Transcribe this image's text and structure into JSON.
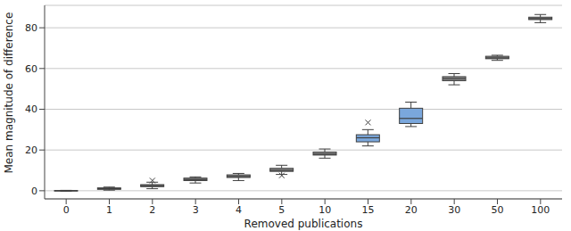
{
  "chart_data": {
    "type": "box",
    "x_label": "Removed publications",
    "y_label": "Mean magnitude of difference",
    "categories": [
      0,
      1,
      2,
      3,
      4,
      5,
      10,
      15,
      20,
      30,
      50,
      100
    ],
    "min": [
      -0.2,
      0.3,
      1.0,
      3.8,
      5.0,
      8.0,
      16.0,
      22.0,
      31.5,
      52.0,
      64.0,
      82.5
    ],
    "q1": [
      -0.1,
      0.7,
      2.0,
      5.0,
      6.5,
      9.5,
      17.5,
      24.0,
      33.0,
      54.0,
      64.8,
      84.0
    ],
    "median": [
      0.0,
      1.0,
      2.5,
      5.5,
      7.0,
      10.0,
      18.0,
      26.0,
      35.5,
      55.0,
      65.2,
      84.5
    ],
    "q3": [
      0.1,
      1.4,
      3.0,
      6.2,
      7.8,
      11.0,
      19.0,
      27.5,
      40.5,
      56.0,
      66.0,
      85.2
    ],
    "max": [
      0.2,
      1.8,
      4.2,
      6.8,
      8.5,
      12.5,
      20.5,
      30.0,
      43.5,
      57.5,
      66.5,
      86.5
    ],
    "outliers": [
      [],
      [],
      [
        5.0
      ],
      [],
      [],
      [
        7.5
      ],
      [],
      [
        33.5
      ],
      [],
      [],
      [],
      []
    ],
    "colors": [
      "#8c8c8c",
      "#8c8c8c",
      "#8c8c8c",
      "#8c8c8c",
      "#8c8c8c",
      "#8c8c8c",
      "#8c8c8c",
      "#7aa7dc",
      "#7aa7dc",
      "#8c8c8c",
      "#8c8c8c",
      "#8c8c8c"
    ],
    "ylim": [
      -4,
      91
    ],
    "yticks": [
      0,
      20,
      40,
      60,
      80
    ],
    "grid": true
  }
}
